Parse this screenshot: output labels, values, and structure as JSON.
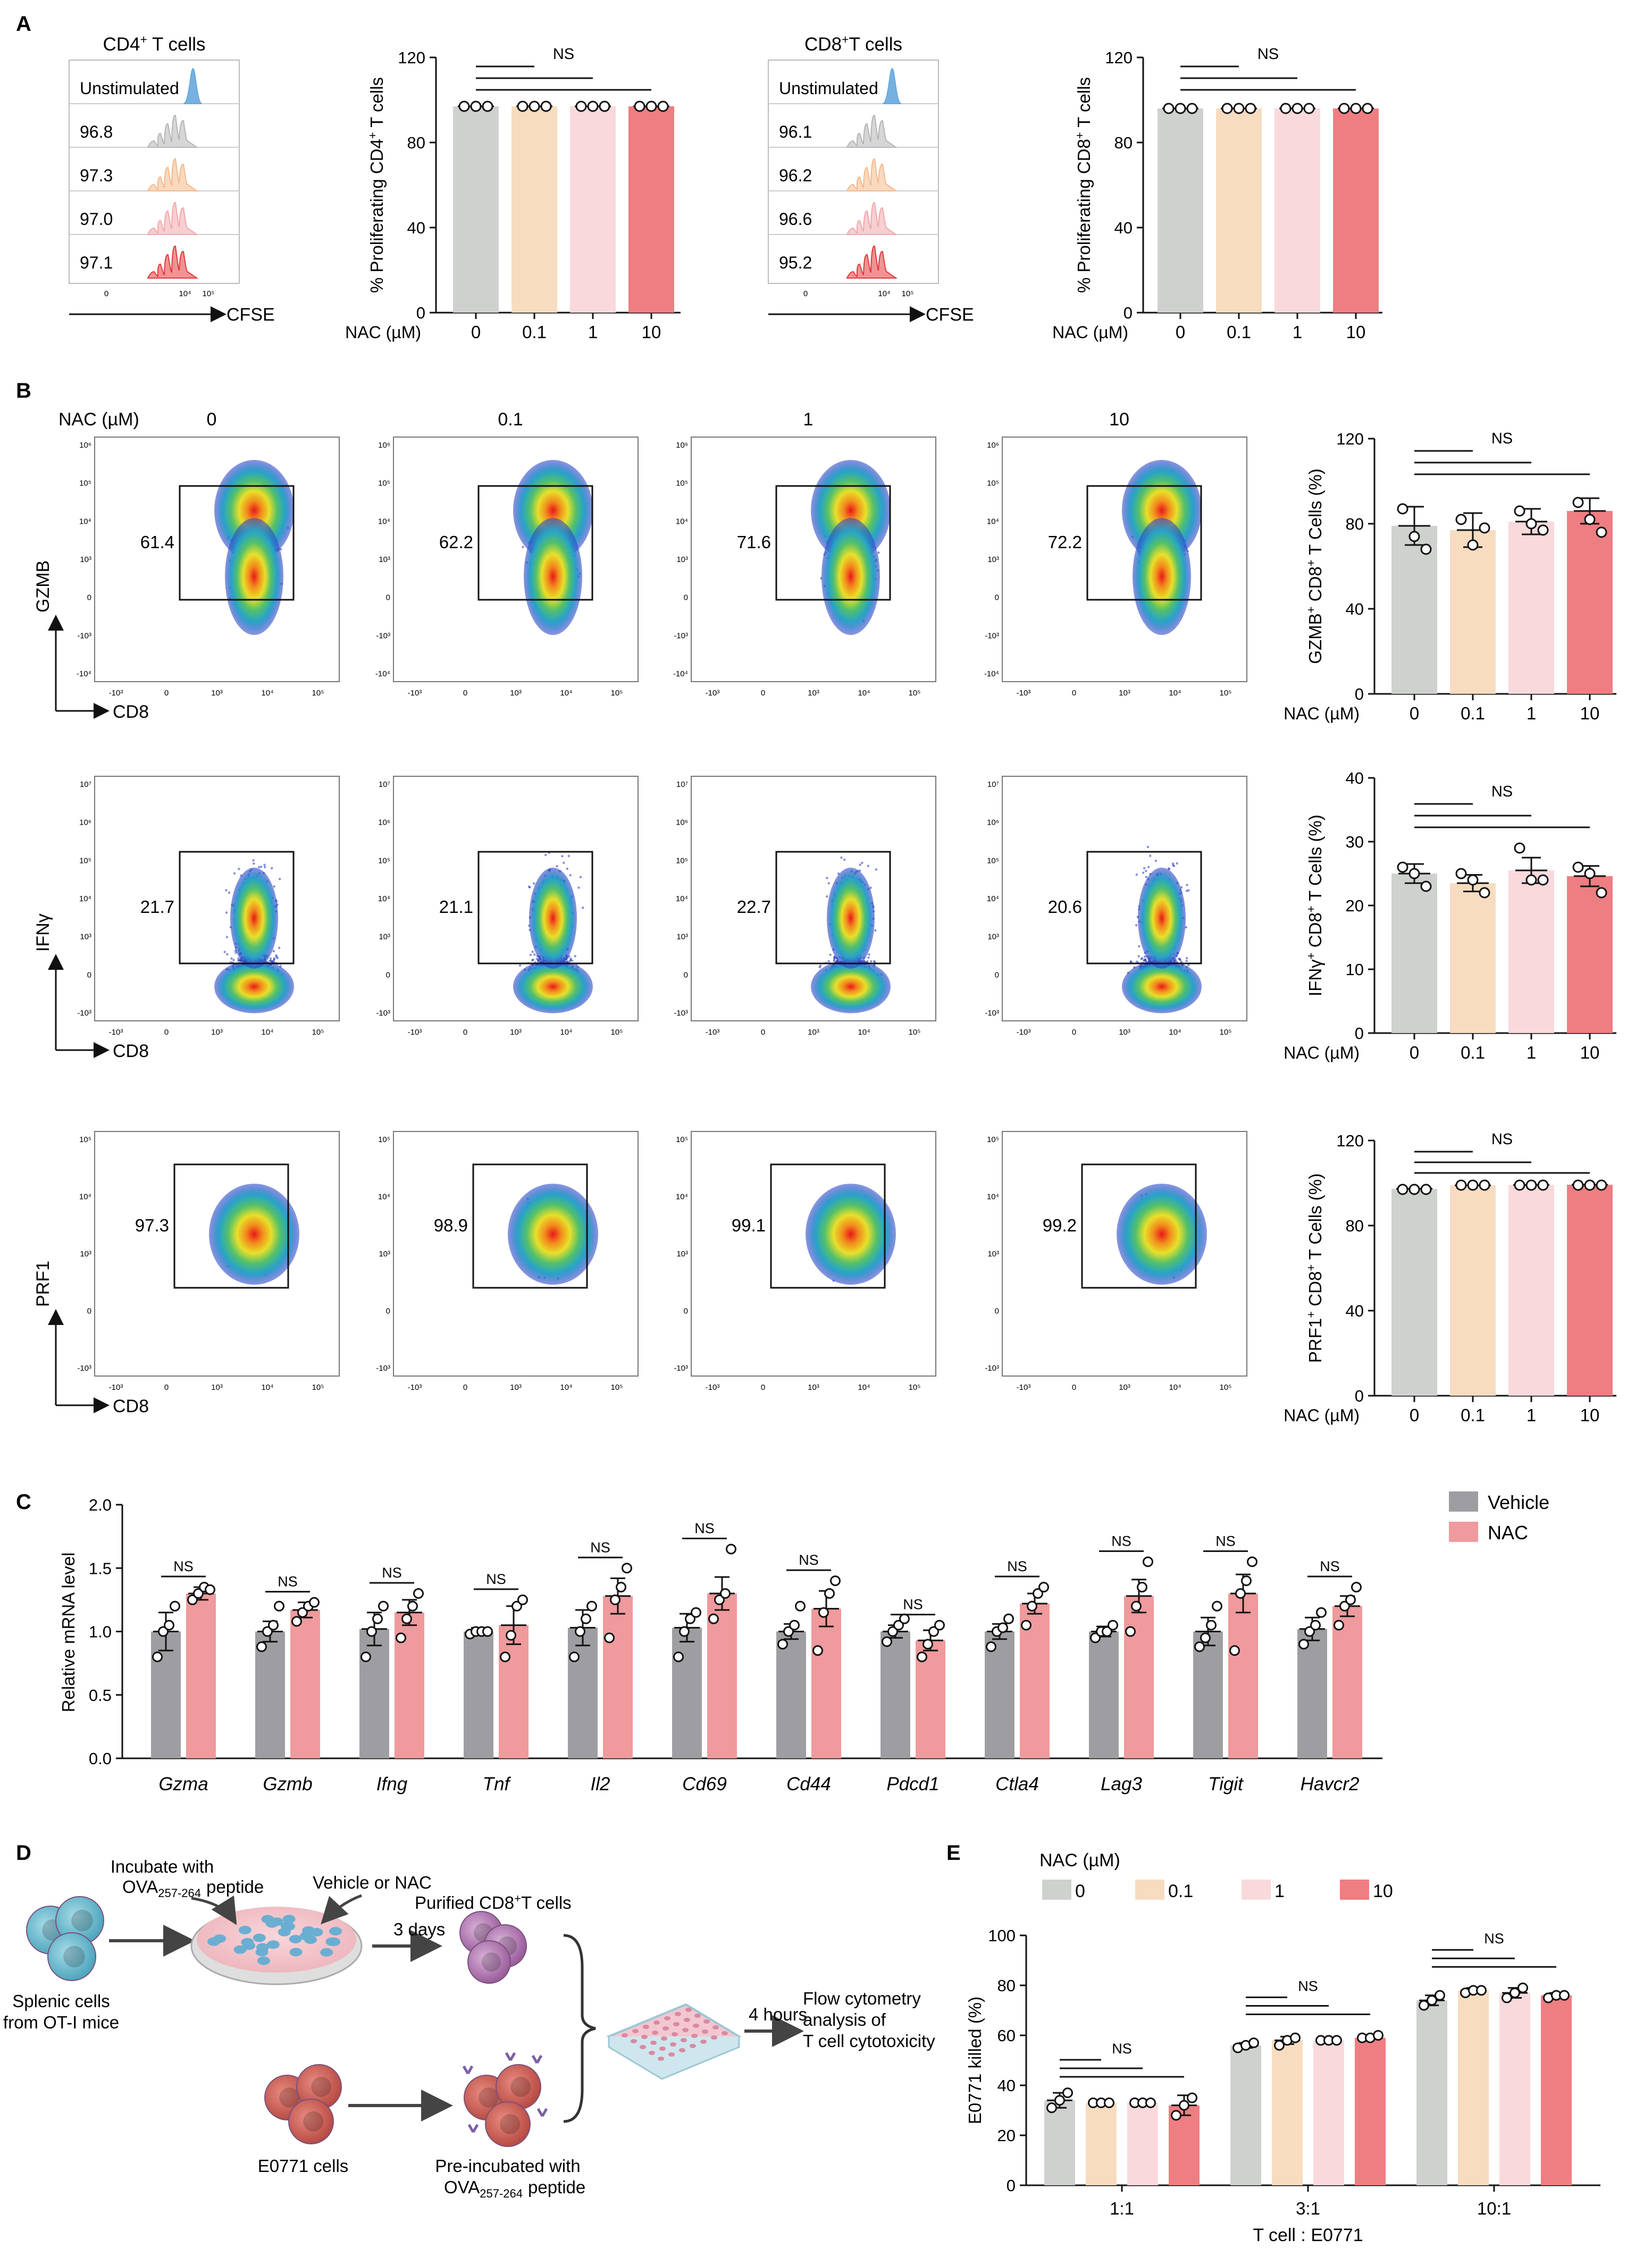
{
  "panel_letters": [
    "A",
    "B",
    "C",
    "D",
    "E"
  ],
  "colors": {
    "g0": "#cfd1cf",
    "g01": "#f7dcc0",
    "g1": "#f9d9dc",
    "g10": "#ee7e82",
    "veh": "#9e9ea2",
    "nac": "#ef9a9c",
    "hist_top": "#67a9de",
    "axis": "#111111"
  },
  "panelA": {
    "histograms": [
      {
        "title": "CD4+ T cells",
        "title_base": "CD4",
        "title_sup": "+",
        "title_rest": " T cells",
        "unstim": "Unstimulated",
        "values": [
          "96.8",
          "97.3",
          "97.0",
          "97.1"
        ],
        "xlabel": "CFSE",
        "xticks": [
          "0",
          "10⁴",
          "10⁵"
        ]
      },
      {
        "title": "CD8+T cells",
        "title_base": "CD8",
        "title_sup": "+",
        "title_rest": "T cells",
        "unstim": "Unstimulated",
        "values": [
          "96.1",
          "96.2",
          "96.6",
          "95.2"
        ],
        "xlabel": "CFSE",
        "xticks": [
          "0",
          "10⁴",
          "10⁵"
        ]
      }
    ]
  },
  "flow": {
    "nac_label": "NAC (µM)",
    "concs": [
      "0",
      "0.1",
      "1",
      "10"
    ],
    "rows": [
      {
        "marker": "GZMB",
        "xlabel": "CD8",
        "values": [
          "61.4",
          "62.2",
          "71.6",
          "72.2"
        ],
        "yticks": [
          "10⁶",
          "10⁵",
          "10⁴",
          "10³",
          "0",
          "-10³",
          "-10⁴"
        ]
      },
      {
        "marker": "IFNγ",
        "xlabel": "CD8",
        "values": [
          "21.7",
          "21.1",
          "22.7",
          "20.6"
        ],
        "yticks": [
          "10⁷",
          "10⁶",
          "10⁵",
          "10⁴",
          "10³",
          "0",
          "-10³"
        ]
      },
      {
        "marker": "PRF1",
        "xlabel": "CD8",
        "values": [
          "97.3",
          "98.9",
          "99.1",
          "99.2"
        ],
        "yticks": [
          "10⁵",
          "10⁴",
          "10³",
          "0",
          "-10³"
        ]
      }
    ],
    "xticks": [
      "-10³",
      "0",
      "10³",
      "10⁴",
      "10⁵"
    ]
  },
  "legendC": {
    "vehicle": "Vehicle",
    "nac": "NAC"
  },
  "panelD": {
    "incubate_1": "Incubate with",
    "incubate_2_base": "OVA",
    "incubate_2_sub": "257-264",
    "incubate_2_rest": "peptide",
    "vehicle_or_nac": "Vehicle or NAC",
    "purified_base": "Purified CD8",
    "purified_sup": "+",
    "purified_rest": "T cells",
    "three_days": "3 days",
    "splenic_1": "Splenic cells",
    "splenic_2": "from OT-I mice",
    "four_hours": "4 hours",
    "flow_1": "Flow cytometry",
    "flow_2": "analysis of",
    "flow_3": "T cell cytotoxicity",
    "e0771": "E0771 cells",
    "preinc_1": "Pre-incubated with",
    "preinc_2_base": "OVA",
    "preinc_2_sub": "257-264",
    "preinc_2_rest": "peptide"
  },
  "chart_data": [
    {
      "id": "A_cd4",
      "type": "bar",
      "categories": [
        "0",
        "0.1",
        "1",
        "10"
      ],
      "values": [
        97,
        97,
        97,
        97
      ],
      "points": [
        [
          97,
          97,
          97
        ],
        [
          97,
          97,
          97
        ],
        [
          97,
          97,
          97
        ],
        [
          97,
          97,
          97
        ]
      ],
      "xlabel": "NAC (µM)",
      "ylabel": "% Proliferating CD4+ T cells",
      "ylabel_base": "% Proliferating CD4",
      "ylabel_sup": "+",
      "ylabel_rest": " T cells",
      "yticks": [
        "0",
        "40",
        "80",
        "120"
      ],
      "ylim": [
        0,
        120
      ],
      "sig": "NS"
    },
    {
      "id": "A_cd8",
      "type": "bar",
      "categories": [
        "0",
        "0.1",
        "1",
        "10"
      ],
      "values": [
        96,
        96,
        96,
        96
      ],
      "points": [
        [
          96,
          96,
          96
        ],
        [
          96,
          96,
          96
        ],
        [
          96,
          96,
          96
        ],
        [
          96,
          96,
          96
        ]
      ],
      "xlabel": "NAC (µM)",
      "ylabel": "% Proliferating CD8+ T cells",
      "ylabel_base": "% Proliferating CD8",
      "ylabel_sup": "+",
      "ylabel_rest": " T cells",
      "yticks": [
        "0",
        "40",
        "80",
        "120"
      ],
      "ylim": [
        0,
        120
      ],
      "sig": "NS"
    },
    {
      "id": "B_gzmb",
      "type": "bar",
      "categories": [
        "0",
        "0.1",
        "1",
        "10"
      ],
      "values": [
        79,
        77,
        81,
        86
      ],
      "errors": [
        9,
        8,
        6,
        6
      ],
      "points": [
        [
          87,
          74,
          68
        ],
        [
          82,
          70,
          78
        ],
        [
          86,
          80,
          77
        ],
        [
          90,
          82,
          76
        ]
      ],
      "xlabel": "NAC (µM)",
      "ylabel": "GZMB+ CD8+ T Cells (%)",
      "ylabel_base": "GZMB",
      "ylabel_sup": "+",
      "ylabel_rest": " CD8",
      "ylabel_sup2": "+",
      "ylabel_rest2": " T Cells (%)",
      "yticks": [
        "0",
        "40",
        "80",
        "120"
      ],
      "ylim": [
        0,
        120
      ],
      "sig": "NS"
    },
    {
      "id": "B_ifng",
      "type": "bar",
      "categories": [
        "0",
        "0.1",
        "1",
        "10"
      ],
      "values": [
        25,
        23.5,
        25.5,
        24.6
      ],
      "errors": [
        1.5,
        1.3,
        2,
        1.6
      ],
      "points": [
        [
          26,
          25,
          23
        ],
        [
          25,
          24,
          22
        ],
        [
          29,
          24,
          24
        ],
        [
          26,
          25,
          22
        ]
      ],
      "xlabel": "NAC (µM)",
      "ylabel": "IFNγ+ CD8+ T Cells (%)",
      "ylabel_base": "IFNγ",
      "ylabel_sup": "+",
      "ylabel_rest": " CD8",
      "ylabel_sup2": "+",
      "ylabel_rest2": " T Cells (%)",
      "yticks": [
        "0",
        "10",
        "20",
        "30",
        "40"
      ],
      "ylim": [
        0,
        40
      ],
      "sig": "NS"
    },
    {
      "id": "B_prf1",
      "type": "bar",
      "categories": [
        "0",
        "0.1",
        "1",
        "10"
      ],
      "values": [
        97.3,
        98.9,
        99.1,
        99.2
      ],
      "points": [
        [
          97,
          97,
          97
        ],
        [
          99,
          99,
          99
        ],
        [
          99,
          99,
          99
        ],
        [
          99,
          99,
          99
        ]
      ],
      "xlabel": "NAC (µM)",
      "ylabel": "PRF1+ CD8+ T Cells (%)",
      "ylabel_base": "PRF1",
      "ylabel_sup": "+",
      "ylabel_rest": " CD8",
      "ylabel_sup2": "+",
      "ylabel_rest2": " T Cells (%)",
      "yticks": [
        "0",
        "40",
        "80",
        "120"
      ],
      "ylim": [
        0,
        120
      ],
      "sig": "NS"
    },
    {
      "id": "C",
      "type": "bar",
      "categories": [
        "Gzma",
        "Gzmb",
        "Ifng",
        "Tnf",
        "Il2",
        "Cd69",
        "Cd44",
        "Pdcd1",
        "Ctla4",
        "Lag3",
        "Tigit",
        "Havcr2"
      ],
      "series": [
        {
          "name": "Vehicle",
          "values": [
            1.0,
            1.0,
            1.02,
            1.0,
            1.03,
            1.03,
            1.0,
            1.0,
            1.0,
            1.0,
            1.0,
            1.02
          ],
          "errors": [
            0.15,
            0.08,
            0.13,
            0.03,
            0.14,
            0.11,
            0.06,
            0.05,
            0.06,
            0.04,
            0.11,
            0.09
          ]
        },
        {
          "name": "NAC",
          "values": [
            1.3,
            1.17,
            1.15,
            1.05,
            1.28,
            1.3,
            1.18,
            0.93,
            1.22,
            1.28,
            1.3,
            1.2
          ],
          "errors": [
            0.05,
            0.06,
            0.1,
            0.15,
            0.14,
            0.13,
            0.14,
            0.08,
            0.08,
            0.13,
            0.15,
            0.08
          ]
        }
      ],
      "points": [
        [
          [
            0.8,
            1.0,
            1.05,
            1.2
          ],
          [
            1.25,
            1.3,
            1.35,
            1.33
          ]
        ],
        [
          [
            0.88,
            1.0,
            1.05,
            1.2
          ],
          [
            1.08,
            1.15,
            1.2,
            1.23
          ]
        ],
        [
          [
            0.8,
            1.0,
            1.1,
            1.2
          ],
          [
            0.95,
            1.1,
            1.2,
            1.3
          ]
        ],
        [
          [
            0.98,
            1.0,
            1.0,
            1.0
          ],
          [
            0.8,
            0.97,
            1.2,
            1.25
          ]
        ],
        [
          [
            0.8,
            1.0,
            1.1,
            1.2
          ],
          [
            0.95,
            1.25,
            1.35,
            1.5
          ]
        ],
        [
          [
            0.8,
            1.0,
            1.1,
            1.15
          ],
          [
            1.1,
            1.25,
            1.3,
            1.65
          ]
        ],
        [
          [
            0.9,
            1.0,
            1.05,
            1.2
          ],
          [
            0.85,
            1.15,
            1.3,
            1.4
          ]
        ],
        [
          [
            0.92,
            1.0,
            1.05,
            1.1
          ],
          [
            0.8,
            0.9,
            1.0,
            1.05
          ]
        ],
        [
          [
            0.88,
            1.0,
            1.03,
            1.1
          ],
          [
            1.05,
            1.2,
            1.3,
            1.35
          ]
        ],
        [
          [
            0.95,
            1.0,
            1.0,
            1.05
          ],
          [
            1.0,
            1.2,
            1.35,
            1.55
          ]
        ],
        [
          [
            0.88,
            0.95,
            1.05,
            1.2
          ],
          [
            0.85,
            1.3,
            1.4,
            1.55
          ]
        ],
        [
          [
            0.9,
            1.0,
            1.05,
            1.15
          ],
          [
            1.05,
            1.2,
            1.25,
            1.35
          ]
        ]
      ],
      "ylabel": "Relative mRNA level",
      "yticks": [
        "0.0",
        "0.5",
        "1.0",
        "1.5",
        "2.0"
      ],
      "ylim": [
        0,
        2.0
      ],
      "sig": "NS"
    },
    {
      "id": "E",
      "type": "bar",
      "legend_title": "NAC (µM)",
      "legend": [
        "0",
        "0.1",
        "1",
        "10"
      ],
      "categories": [
        "1:1",
        "3:1",
        "10:1"
      ],
      "series": [
        {
          "name": "0",
          "values": [
            34,
            56,
            74
          ]
        },
        {
          "name": "0.1",
          "values": [
            33,
            58,
            78
          ]
        },
        {
          "name": "1",
          "values": [
            33,
            58,
            77
          ]
        },
        {
          "name": "10",
          "values": [
            32,
            59,
            76
          ]
        }
      ],
      "errors": [
        [
          3,
          1,
          2
        ],
        [
          0.5,
          1.5,
          1
        ],
        [
          0.5,
          0.5,
          2
        ],
        [
          4,
          0.5,
          1
        ]
      ],
      "points": [
        [
          [
            31,
            34,
            37
          ],
          [
            55,
            56,
            57
          ],
          [
            72,
            74,
            76
          ]
        ],
        [
          [
            33,
            33,
            33
          ],
          [
            56,
            58,
            59
          ],
          [
            77,
            78,
            78
          ]
        ],
        [
          [
            33,
            33,
            33
          ],
          [
            58,
            58,
            58
          ],
          [
            75,
            77,
            79
          ]
        ],
        [
          [
            28,
            32,
            35
          ],
          [
            59,
            59,
            60
          ],
          [
            75,
            76,
            76
          ]
        ]
      ],
      "xlabel": "T cell : E0771",
      "ylabel": "E0771 killed (%)",
      "yticks": [
        "0",
        "20",
        "40",
        "60",
        "80",
        "100"
      ],
      "ylim": [
        0,
        100
      ],
      "sig": "NS"
    }
  ]
}
